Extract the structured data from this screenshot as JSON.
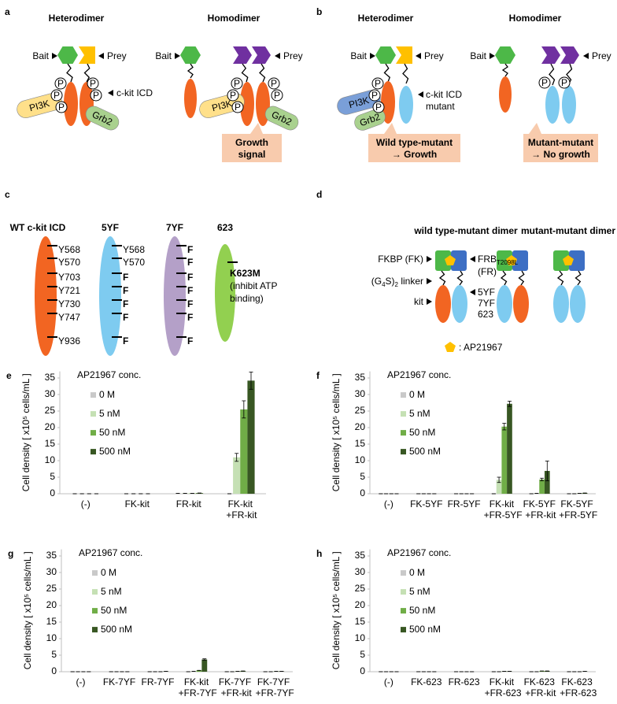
{
  "panels": {
    "a": {
      "letter": "a",
      "heterodimer": "Heterodimer",
      "homodimer": "Homodimer",
      "bait": "Bait",
      "prey": "Prey",
      "icd": "c-kit ICD",
      "pi3k": "PI3K",
      "grb2": "Grb2",
      "p": "P",
      "signal": [
        "Growth",
        "signal"
      ]
    },
    "b": {
      "letter": "b",
      "heterodimer": "Heterodimer",
      "homodimer": "Homodimer",
      "bait": "Bait",
      "prey": "Prey",
      "icd": [
        "c-kit ICD",
        "mutant"
      ],
      "pi3k": "PI3K",
      "grb2": "Grb2",
      "p": "P",
      "wt_mutant": [
        "Wild type-mutant",
        "→ Growth"
      ],
      "mutant_mutant": [
        "Mutant-mutant",
        "→ No growth"
      ]
    },
    "c": {
      "letter": "c",
      "constructs": [
        {
          "name": "WT c-kit ICD",
          "sites": [
            "Y568",
            "Y570",
            "Y703",
            "Y721",
            "Y730",
            "Y747",
            "Y936"
          ]
        },
        {
          "name": "5YF",
          "sites": [
            "Y568",
            "Y570",
            "F",
            "F",
            "F",
            "F",
            "F"
          ]
        },
        {
          "name": "7YF",
          "sites": [
            "F",
            "F",
            "F",
            "F",
            "F",
            "F",
            "F"
          ]
        },
        {
          "name": "623",
          "sites": [
            "K623M"
          ],
          "note": [
            "(inhibit ATP",
            "binding)"
          ]
        }
      ]
    },
    "d": {
      "letter": "d",
      "wt_mutant_dimer": "wild type-mutant dimer",
      "mutant_mutant_dimer": "mutant-mutant dimer",
      "fkbp": "FKBP (FK)",
      "frb": [
        "FRB",
        "T2098L",
        "(FR)"
      ],
      "linker": [
        "(G",
        "4",
        "S)",
        "2",
        " linker"
      ],
      "kit": "kit",
      "mutants": [
        "5YF",
        "7YF",
        "623"
      ],
      "ligand": ": AP21967"
    }
  },
  "chart_data": [
    {
      "type": "bar",
      "panel": "e",
      "y_label": "Cell density [ x10⁵ cells/mL ]",
      "legend_title": "AP21967 conc.",
      "legend": "upper left",
      "categories": [
        "(-)",
        "FK-kit",
        "FR-kit",
        "FK-kit +FR-kit"
      ],
      "series": [
        {
          "name": "0 M",
          "color": "#c9c9c9",
          "values": [
            0,
            0,
            0.1,
            0
          ],
          "errors": [
            0,
            0,
            0,
            0
          ]
        },
        {
          "name": "5 nM",
          "color": "#c5e0b4",
          "values": [
            0,
            0,
            0.1,
            11
          ],
          "errors": [
            0,
            0,
            0,
            1.2
          ]
        },
        {
          "name": "50 nM",
          "color": "#70ad47",
          "values": [
            0,
            0,
            0.1,
            25.5
          ],
          "errors": [
            0,
            0,
            0,
            2.6
          ]
        },
        {
          "name": "500 nM",
          "color": "#385723",
          "values": [
            0,
            0,
            0.2,
            34.2
          ],
          "errors": [
            0,
            0,
            0,
            2.6
          ]
        }
      ],
      "ylim": [
        0,
        37
      ],
      "yticks": [
        0,
        5,
        10,
        15,
        20,
        25,
        30,
        35
      ]
    },
    {
      "type": "bar",
      "panel": "f",
      "y_label": "Cell density [ x10⁵ cells/mL ]",
      "legend_title": "AP21967 conc.",
      "legend": "upper left",
      "categories": [
        "(-)",
        "FK-5YF",
        "FR-5YF",
        "FK-kit +FR-5YF",
        "FK-5YF +FR-kit",
        "FK-5YF +FR-5YF"
      ],
      "series": [
        {
          "name": "0 M",
          "color": "#c9c9c9",
          "values": [
            0,
            0,
            0,
            0,
            0,
            0
          ],
          "errors": [
            0,
            0,
            0,
            0,
            0,
            0
          ]
        },
        {
          "name": "5 nM",
          "color": "#c5e0b4",
          "values": [
            0,
            0,
            0,
            4.2,
            0.1,
            0
          ],
          "errors": [
            0,
            0,
            0,
            0.8,
            0,
            0
          ]
        },
        {
          "name": "50 nM",
          "color": "#70ad47",
          "values": [
            0,
            0,
            0,
            20.3,
            4.3,
            0.1
          ],
          "errors": [
            0,
            0,
            0,
            1,
            0.4,
            0
          ]
        },
        {
          "name": "500 nM",
          "color": "#385723",
          "values": [
            0,
            0,
            0,
            27.2,
            6.9,
            0.2
          ],
          "errors": [
            0,
            0,
            0,
            0.8,
            3,
            0
          ]
        }
      ],
      "ylim": [
        0,
        37
      ],
      "yticks": [
        0,
        5,
        10,
        15,
        20,
        25,
        30,
        35
      ]
    },
    {
      "type": "bar",
      "panel": "g",
      "y_label": "Cell density [ x10⁵ cells/mL ]",
      "legend_title": "AP21967 conc.",
      "legend": "upper left",
      "categories": [
        "(-)",
        "FK-7YF",
        "FR-7YF",
        "FK-kit +FR-7YF",
        "FK-7YF +FR-kit",
        "FK-7YF +FR-7YF"
      ],
      "series": [
        {
          "name": "0 M",
          "color": "#c9c9c9",
          "values": [
            0,
            0,
            0,
            0,
            0,
            0
          ],
          "errors": [
            0,
            0,
            0,
            0,
            0,
            0
          ]
        },
        {
          "name": "5 nM",
          "color": "#c5e0b4",
          "values": [
            0,
            0,
            0,
            0.1,
            0,
            0
          ],
          "errors": [
            0,
            0,
            0,
            0,
            0,
            0
          ]
        },
        {
          "name": "50 nM",
          "color": "#70ad47",
          "values": [
            0,
            0,
            0,
            0.4,
            0.1,
            0.1
          ],
          "errors": [
            0,
            0,
            0,
            0,
            0,
            0
          ]
        },
        {
          "name": "500 nM",
          "color": "#385723",
          "values": [
            0,
            0,
            0.1,
            3.7,
            0.2,
            0.1
          ],
          "errors": [
            0,
            0,
            0,
            0.2,
            0,
            0
          ]
        }
      ],
      "ylim": [
        0,
        37
      ],
      "yticks": [
        0,
        5,
        10,
        15,
        20,
        25,
        30,
        35
      ]
    },
    {
      "type": "bar",
      "panel": "h",
      "y_label": "Cell density [ x10⁵ cells/mL ]",
      "legend_title": "AP21967 conc.",
      "legend": "upper left",
      "categories": [
        "(-)",
        "FK-623",
        "FR-623",
        "FK-kit +FR-623",
        "FK-623 +FR-kit",
        "FK-623 +FR-623"
      ],
      "series": [
        {
          "name": "0 M",
          "color": "#c9c9c9",
          "values": [
            0,
            0,
            0,
            0,
            0,
            0
          ],
          "errors": [
            0,
            0,
            0,
            0,
            0,
            0
          ]
        },
        {
          "name": "5 nM",
          "color": "#c5e0b4",
          "values": [
            0,
            0,
            0,
            0,
            0,
            0
          ],
          "errors": [
            0,
            0,
            0,
            0,
            0,
            0
          ]
        },
        {
          "name": "50 nM",
          "color": "#70ad47",
          "values": [
            0,
            0,
            0,
            0.1,
            0.2,
            0
          ],
          "errors": [
            0,
            0,
            0,
            0,
            0,
            0
          ]
        },
        {
          "name": "500 nM",
          "color": "#385723",
          "values": [
            0,
            0,
            0,
            0.1,
            0.2,
            0.1
          ],
          "errors": [
            0,
            0,
            0,
            0,
            0,
            0
          ]
        }
      ],
      "ylim": [
        0,
        37
      ],
      "yticks": [
        0,
        5,
        10,
        15,
        20,
        25,
        30,
        35
      ]
    }
  ]
}
